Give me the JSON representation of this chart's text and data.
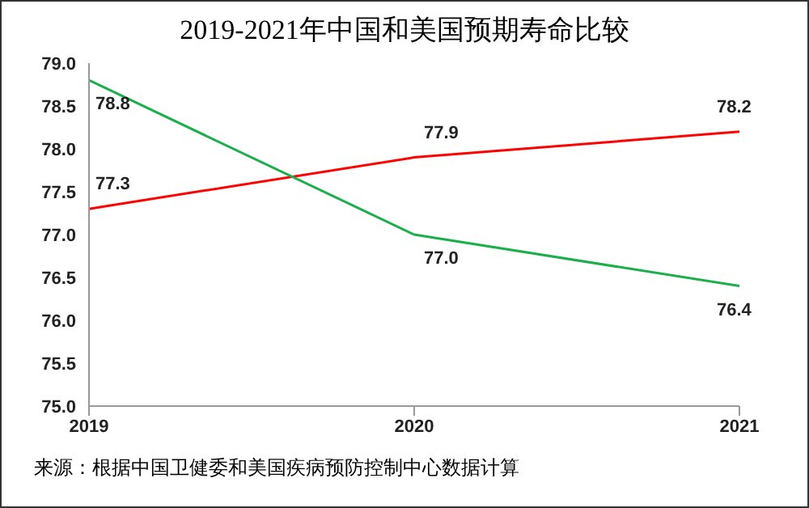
{
  "chart_data": {
    "type": "line",
    "title": "2019-2021年中国和美国预期寿命比较",
    "x": [
      2019,
      2020,
      2021
    ],
    "series": [
      {
        "color": "#ff0000",
        "values": [
          77.3,
          77.9,
          78.2
        ],
        "value_labels": [
          "77.3",
          "77.9",
          "78.2"
        ]
      },
      {
        "color": "#1aaf4b",
        "values": [
          78.8,
          77.0,
          76.4
        ],
        "value_labels": [
          "78.8",
          "77.0",
          "76.4"
        ]
      }
    ],
    "xlim": [
      2019,
      2021
    ],
    "xticks": [
      2019,
      2020,
      2021
    ],
    "ylim": [
      75,
      79
    ],
    "yticks": [
      {
        "value": 75,
        "label": "75.0"
      },
      {
        "value": 75.5,
        "label": "75.5"
      },
      {
        "value": 76,
        "label": "76.0"
      },
      {
        "value": 76.5,
        "label": "76.5"
      },
      {
        "value": 77,
        "label": "77.0"
      },
      {
        "value": 77.5,
        "label": "77.5"
      },
      {
        "value": 78,
        "label": "78.0"
      },
      {
        "value": 78.5,
        "label": "78.5"
      },
      {
        "value": 79,
        "label": "79.0"
      }
    ],
    "grid": false,
    "legend": false,
    "marker": "none",
    "line_style": "solid",
    "annotations": [
      "来源：根据中国卫健委和美国疾病预防控制中心数据计算"
    ]
  }
}
